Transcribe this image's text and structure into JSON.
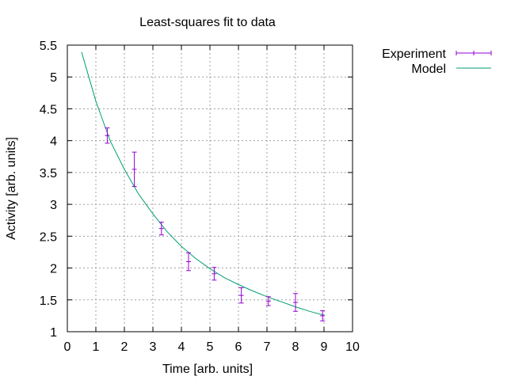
{
  "chart_data": {
    "type": "scatter",
    "title": "Least-squares fit to data",
    "xlabel": "Time [arb. units]",
    "ylabel": "Activity [arb. units]",
    "xlim": [
      0,
      10
    ],
    "ylim": [
      1,
      5.5
    ],
    "x_ticks": [
      0,
      1,
      2,
      3,
      4,
      5,
      6,
      7,
      8,
      9,
      10
    ],
    "y_ticks": [
      1,
      1.5,
      2,
      2.5,
      3,
      3.5,
      4,
      4.5,
      5,
      5.5
    ],
    "grid": true,
    "legend_position": "top-right outside",
    "series": [
      {
        "name": "Experiment",
        "kind": "errorbars",
        "color": "#9400d3",
        "x": [
          1.4,
          2.35,
          3.3,
          4.25,
          5.15,
          6.1,
          7.05,
          8.0,
          8.95
        ],
        "y": [
          4.08,
          3.55,
          2.62,
          2.1,
          1.91,
          1.57,
          1.48,
          1.46,
          1.25
        ],
        "err_low": [
          0.12,
          0.27,
          0.1,
          0.14,
          0.1,
          0.12,
          0.07,
          0.14,
          0.08
        ],
        "err_high": [
          0.12,
          0.27,
          0.1,
          0.14,
          0.1,
          0.12,
          0.07,
          0.14,
          0.08
        ]
      },
      {
        "name": "Model",
        "kind": "line",
        "color": "#009e73",
        "x": [
          0.5,
          1.0,
          1.5,
          2.0,
          2.5,
          3.0,
          3.5,
          4.0,
          4.5,
          5.0,
          5.5,
          6.0,
          6.5,
          7.0,
          7.5,
          8.0,
          8.5,
          9.0
        ],
        "y": [
          5.39,
          4.62,
          4.0,
          3.55,
          3.16,
          2.85,
          2.57,
          2.34,
          2.15,
          1.99,
          1.85,
          1.74,
          1.64,
          1.55,
          1.47,
          1.39,
          1.32,
          1.26
        ]
      }
    ]
  }
}
